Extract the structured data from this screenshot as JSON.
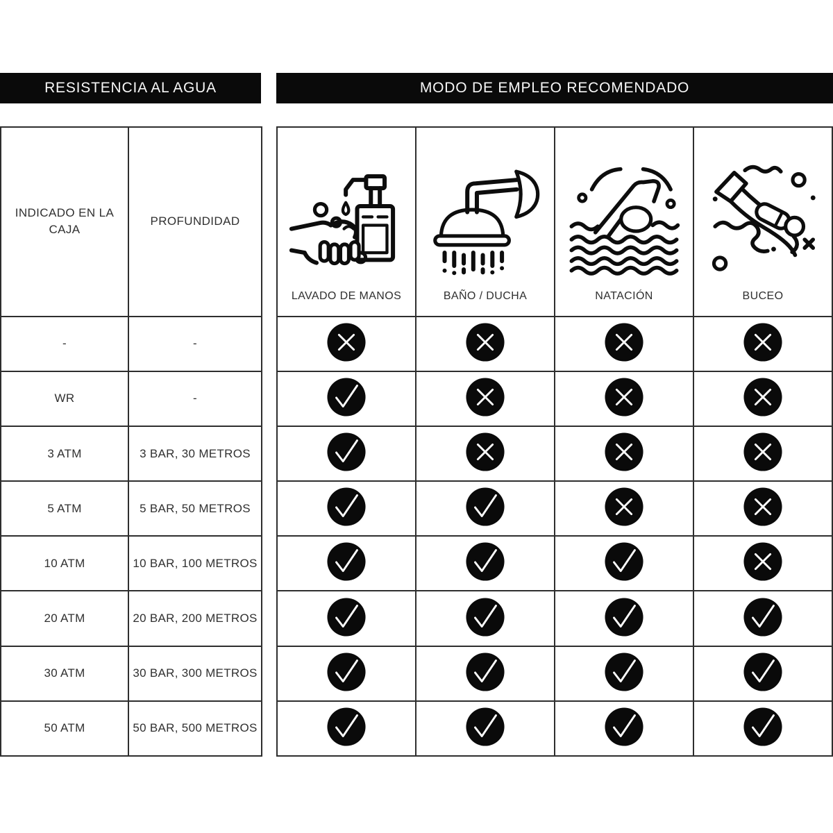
{
  "header": {
    "left_banner": "RESISTENCIA AL AGUA",
    "right_banner": "MODO DE EMPLEO RECOMENDADO"
  },
  "resistance_table": {
    "columns": [
      "INDICADO EN LA CAJA",
      "PROFUNDIDAD"
    ],
    "rows": [
      [
        "-",
        "-"
      ],
      [
        "WR",
        "-"
      ],
      [
        "3 ATM",
        "3 BAR, 30 METROS"
      ],
      [
        "5 ATM",
        "5 BAR, 50 METROS"
      ],
      [
        "10 ATM",
        "10 BAR, 100 METROS"
      ],
      [
        "20 ATM",
        "20 BAR, 200 METROS"
      ],
      [
        "30 ATM",
        "30 BAR, 300 METROS"
      ],
      [
        "50 ATM",
        "50 BAR, 500 METROS"
      ]
    ]
  },
  "usage_table": {
    "columns": [
      {
        "icon": "handwash-icon",
        "label": "LAVADO DE MANOS"
      },
      {
        "icon": "shower-icon",
        "label": "BAÑO / DUCHA"
      },
      {
        "icon": "swimming-icon",
        "label": "NATACIÓN"
      },
      {
        "icon": "diving-icon",
        "label": "BUCEO"
      }
    ],
    "marks": [
      [
        "✕",
        "✕",
        "✕",
        "✕"
      ],
      [
        "✓",
        "✕",
        "✕",
        "✕"
      ],
      [
        "✓",
        "✕",
        "✕",
        "✕"
      ],
      [
        "✓",
        "✓",
        "✕",
        "✕"
      ],
      [
        "✓",
        "✓",
        "✓",
        "✕"
      ],
      [
        "✓",
        "✓",
        "✓",
        "✓"
      ],
      [
        "✓",
        "✓",
        "✓",
        "✓"
      ],
      [
        "✓",
        "✓",
        "✓",
        "✓"
      ]
    ]
  },
  "colors": {
    "banner_bg": "#0a0a0a",
    "banner_text": "#f7f7f7",
    "mark_bg": "#0a0a0a",
    "mark_glyph": "#ffffff",
    "border": "#2e2e2e",
    "icon_stroke": "#0d0d0d"
  },
  "chart_data": [
    {
      "type": "table",
      "title": "RESISTENCIA AL AGUA",
      "columns": [
        "INDICADO EN LA CAJA",
        "PROFUNDIDAD"
      ],
      "rows": [
        [
          "-",
          "-"
        ],
        [
          "WR",
          "-"
        ],
        [
          "3 ATM",
          "3 BAR, 30 METROS"
        ],
        [
          "5 ATM",
          "5 BAR, 50 METROS"
        ],
        [
          "10 ATM",
          "10 BAR, 100 METROS"
        ],
        [
          "20 ATM",
          "20 BAR, 200 METROS"
        ],
        [
          "30 ATM",
          "30 BAR, 300 METROS"
        ],
        [
          "50 ATM",
          "50 BAR, 500 METROS"
        ]
      ]
    },
    {
      "type": "table",
      "title": "MODO DE EMPLEO RECOMENDADO",
      "columns": [
        "LAVADO DE MANOS",
        "BAÑO / DUCHA",
        "NATACIÓN",
        "BUCEO"
      ],
      "row_labels": [
        "-",
        "WR",
        "3 ATM",
        "5 ATM",
        "10 ATM",
        "20 ATM",
        "30 ATM",
        "50 ATM"
      ],
      "rows": [
        [
          "no",
          "no",
          "no",
          "no"
        ],
        [
          "yes",
          "no",
          "no",
          "no"
        ],
        [
          "yes",
          "no",
          "no",
          "no"
        ],
        [
          "yes",
          "yes",
          "no",
          "no"
        ],
        [
          "yes",
          "yes",
          "yes",
          "no"
        ],
        [
          "yes",
          "yes",
          "yes",
          "yes"
        ],
        [
          "yes",
          "yes",
          "yes",
          "yes"
        ],
        [
          "yes",
          "yes",
          "yes",
          "yes"
        ]
      ]
    }
  ]
}
